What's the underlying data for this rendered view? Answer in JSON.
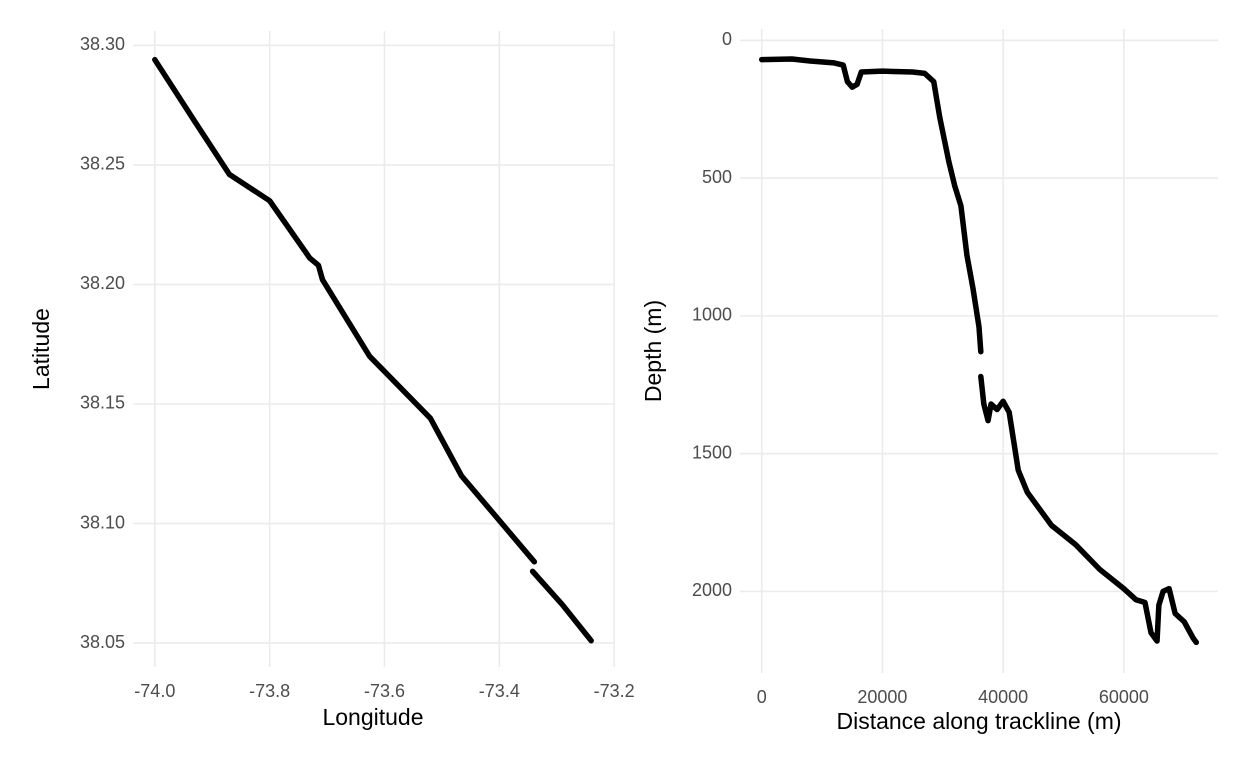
{
  "chart_data": [
    {
      "type": "line",
      "x_label": "Longitude",
      "y_label": "Latitude",
      "color": "#000000",
      "grid": true,
      "x": [
        -74.0,
        -73.93,
        -73.87,
        -73.8,
        -73.73,
        -73.715,
        -73.708,
        -73.626,
        -73.52,
        -73.466,
        -73.339,
        null,
        -73.342,
        -73.29,
        -73.24
      ],
      "values": [
        38.294,
        38.268,
        38.246,
        38.235,
        38.211,
        38.208,
        38.202,
        38.17,
        38.144,
        38.12,
        38.084,
        null,
        38.08,
        38.066,
        38.051
      ],
      "xlim": [
        -74.038,
        -73.202
      ],
      "ylim": [
        38.04,
        38.306
      ],
      "xticks": [
        {
          "value": -74,
          "label": "-74.0"
        },
        {
          "value": -73.8,
          "label": "-73.8"
        },
        {
          "value": -73.6,
          "label": "-73.6"
        },
        {
          "value": -73.4,
          "label": "-73.4"
        },
        {
          "value": -73.2,
          "label": "-73.2"
        }
      ],
      "yticks": [
        {
          "value": 38.05,
          "label": "38.05"
        },
        {
          "value": 38.1,
          "label": "38.10"
        },
        38.15,
        {
          "value": 38.2,
          "label": "38.20"
        },
        38.25,
        {
          "value": 38.3,
          "label": "38.30"
        }
      ]
    },
    {
      "type": "line",
      "x_label": "Distance along trackline (m)",
      "y_label": "Depth (m)",
      "color": "#000000",
      "grid": true,
      "y_reversed": true,
      "x": [
        0,
        5000,
        8000,
        12000,
        13500,
        14200,
        15000,
        15800,
        16500,
        20000,
        25000,
        27000,
        28500,
        29500,
        31000,
        32000,
        33000,
        34000,
        35000,
        36000,
        36300,
        null,
        36300,
        36800,
        37500,
        38000,
        39000,
        40000,
        41000,
        41500,
        42500,
        44000,
        46000,
        48000,
        52000,
        56000,
        60000,
        62000,
        63500,
        64500,
        65500,
        65800,
        66500,
        67500,
        68500,
        70000,
        71500,
        72000
      ],
      "values": [
        70,
        68,
        75,
        82,
        90,
        150,
        170,
        160,
        115,
        112,
        115,
        120,
        150,
        280,
        440,
        530,
        600,
        780,
        900,
        1040,
        1130,
        null,
        1220,
        1320,
        1380,
        1320,
        1340,
        1310,
        1350,
        1420,
        1560,
        1640,
        1700,
        1760,
        1830,
        1920,
        1990,
        2030,
        2040,
        2150,
        2180,
        2050,
        2000,
        1990,
        2080,
        2110,
        2170,
        2185
      ],
      "xlim": [
        -3600,
        75600
      ],
      "ylim": [
        -41,
        2296
      ],
      "xticks": [
        0,
        20000,
        40000,
        60000
      ],
      "yticks": [
        0,
        500,
        1000,
        1500,
        2000
      ]
    }
  ]
}
